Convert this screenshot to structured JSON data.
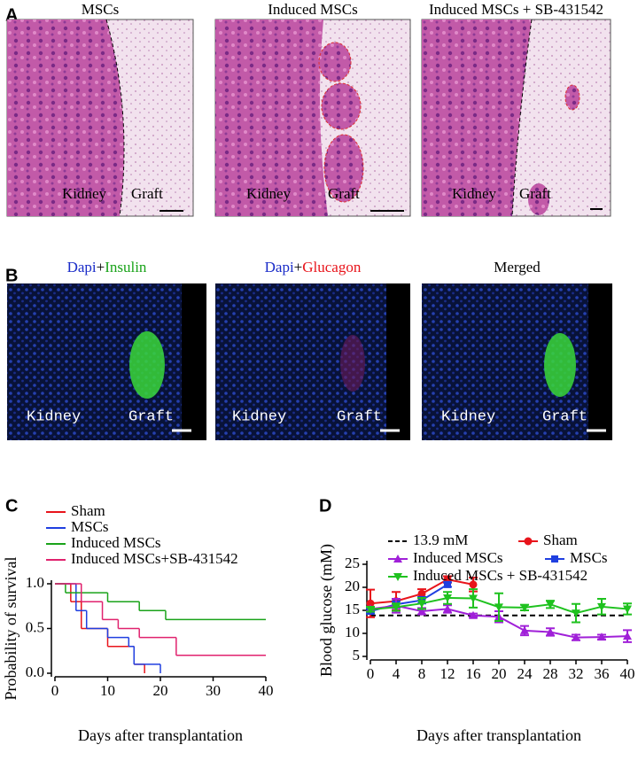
{
  "figure_a": {
    "label": "A",
    "images": [
      {
        "title": "MSCs",
        "labels": [
          "Kidney",
          "Graft"
        ]
      },
      {
        "title": "Induced MSCs",
        "labels": [
          "Kidney",
          "Graft"
        ]
      },
      {
        "title": "Induced MSCs + SB-431542",
        "labels": [
          "Kidney",
          "Graft"
        ]
      }
    ]
  },
  "figure_b": {
    "label": "B",
    "images": [
      {
        "title_parts": [
          "Dapi",
          "+",
          "Insulin"
        ],
        "labels": [
          "Kidney",
          "Graft"
        ]
      },
      {
        "title_parts": [
          "Dapi",
          "+",
          "Glucagon"
        ],
        "labels": [
          "Kidney",
          "Graft"
        ]
      },
      {
        "title_parts": [
          "Merged"
        ],
        "labels": [
          "Kidney",
          "Graft"
        ]
      }
    ]
  },
  "chart_data": [
    {
      "type": "step",
      "panel_label": "C",
      "xlabel": "Days after transplantation",
      "ylabel": "Probability of survival",
      "xlim": [
        0,
        40
      ],
      "xticks": [
        0,
        10,
        20,
        30,
        40
      ],
      "ylim": [
        0,
        1
      ],
      "yticks": [
        {
          "value": 0,
          "label": "0.0"
        },
        {
          "value": 0.5,
          "label": "0.5"
        },
        {
          "value": 1,
          "label": "1.0"
        }
      ],
      "series": [
        {
          "name": "Sham",
          "color": "#e8141b",
          "x": [
            0,
            3,
            5,
            10,
            15,
            17
          ],
          "values": [
            1,
            0.8,
            0.5,
            0.3,
            0.1,
            0
          ]
        },
        {
          "name": "MSCs",
          "color": "#1f3fe0",
          "x": [
            0,
            4,
            6,
            10,
            14,
            15,
            20
          ],
          "values": [
            1,
            0.7,
            0.5,
            0.4,
            0.3,
            0.1,
            0
          ]
        },
        {
          "name": "Induced MSCs",
          "color": "#1aa31a",
          "x": [
            0,
            2,
            10,
            16,
            21,
            40
          ],
          "values": [
            1,
            0.9,
            0.8,
            0.7,
            0.6,
            0.6
          ]
        },
        {
          "name": "Induced MSCs+SB-431542",
          "color": "#e0226e",
          "x": [
            0,
            5,
            9,
            12,
            16,
            23,
            40
          ],
          "values": [
            1,
            0.8,
            0.6,
            0.5,
            0.4,
            0.2,
            0.2
          ]
        }
      ]
    },
    {
      "type": "line",
      "panel_label": "D",
      "xlabel": "Days after transplantation",
      "ylabel": "Blood glucose (mM)",
      "xlim": [
        0,
        40
      ],
      "xticks": [
        0,
        4,
        8,
        12,
        16,
        20,
        24,
        28,
        32,
        36,
        40
      ],
      "ylim": [
        5,
        25
      ],
      "yticks": [
        5,
        10,
        15,
        20,
        25
      ],
      "series": [
        {
          "name": "13.9 mM",
          "color": "#000000",
          "dashed": true,
          "x": [
            0,
            40
          ],
          "values": [
            13.9,
            13.9
          ]
        },
        {
          "name": "Sham",
          "color": "#e8141b",
          "marker": "circle",
          "x": [
            0,
            4,
            8,
            12,
            16
          ],
          "values": [
            16.5,
            17,
            18.6,
            21.7,
            20.6
          ],
          "errors": [
            3,
            2,
            1,
            0.7,
            1.5
          ]
        },
        {
          "name": "MSCs",
          "color": "#1f3fe0",
          "marker": "square",
          "x": [
            0,
            4,
            8,
            12
          ],
          "values": [
            14.8,
            16.3,
            17.2,
            20.6
          ],
          "errors": [
            0.5,
            0.7,
            0.7,
            0.5
          ]
        },
        {
          "name": "Induced MSCs",
          "color": "#a020d8",
          "marker": "triangle-up",
          "x": [
            0,
            4,
            8,
            12,
            16,
            20,
            24,
            28,
            32,
            36,
            40
          ],
          "values": [
            15.3,
            16,
            14.8,
            15.3,
            13.9,
            13.6,
            10.6,
            10.3,
            9.1,
            9.2,
            9.4
          ],
          "errors": [
            0.5,
            1.5,
            0.7,
            0.8,
            0.4,
            1.2,
            1,
            0.8,
            0.6,
            0.5,
            1.3
          ]
        },
        {
          "name": "Induced MSCs + SB-431542",
          "color": "#1fc21f",
          "marker": "triangle-down",
          "x": [
            0,
            4,
            8,
            12,
            16,
            20,
            24,
            28,
            32,
            36,
            40
          ],
          "values": [
            15.2,
            15.7,
            16.5,
            17.7,
            17.6,
            15.7,
            15.6,
            16.3,
            14.4,
            15.8,
            15.3
          ],
          "errors": [
            0.5,
            0.8,
            1.2,
            1.3,
            2,
            3,
            0.6,
            0.8,
            2,
            1.7,
            1.2
          ]
        }
      ]
    }
  ]
}
